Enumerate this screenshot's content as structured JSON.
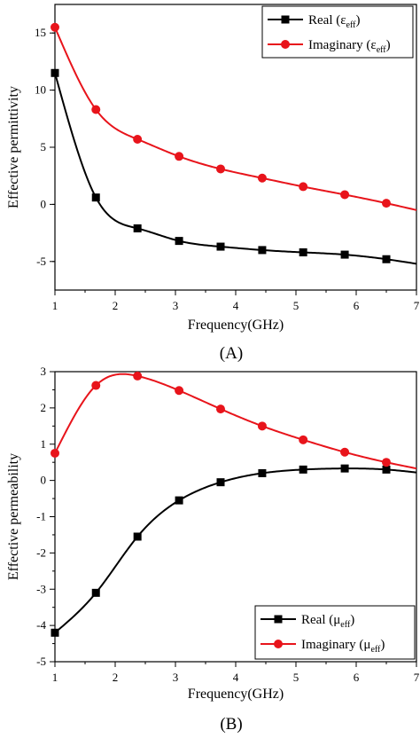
{
  "chart_data": [
    {
      "type": "line",
      "panel_label": "(A)",
      "xlabel": "Frequency(GHz)",
      "ylabel": "Effective permittivity",
      "xlim": [
        1,
        7
      ],
      "ylim": [
        -7.5,
        17.5
      ],
      "xticks": [
        1,
        2,
        3,
        4,
        5,
        6,
        7
      ],
      "yticks": [
        -5,
        0,
        5,
        10,
        15
      ],
      "grid": false,
      "legend_position": "top-right",
      "series": [
        {
          "name": "Real (εeff)",
          "name_main": "Real (ε",
          "name_sub": "eff",
          "name_end": ")",
          "color": "#000000",
          "marker": "square",
          "x": [
            1.0,
            1.68,
            2.37,
            3.06,
            3.75,
            4.44,
            5.12,
            5.81,
            6.5,
            7.0
          ],
          "y": [
            11.5,
            0.6,
            -2.1,
            -3.2,
            -3.7,
            -4.0,
            -4.2,
            -4.4,
            -4.8,
            -5.2
          ],
          "marker_x": [
            1.0,
            1.68,
            2.37,
            3.06,
            3.75,
            4.44,
            5.12,
            5.81,
            6.5
          ]
        },
        {
          "name": "Imaginary (εeff)",
          "name_main": "Imaginary (ε",
          "name_sub": "eff",
          "name_end": ")",
          "color": "#e8141b",
          "marker": "circle",
          "x": [
            1.0,
            1.68,
            2.37,
            3.06,
            3.75,
            4.44,
            5.12,
            5.81,
            6.5,
            7.0
          ],
          "y": [
            15.5,
            8.3,
            5.7,
            4.2,
            3.1,
            2.3,
            1.55,
            0.85,
            0.1,
            -0.5
          ],
          "marker_x": [
            1.0,
            1.68,
            2.37,
            3.06,
            3.75,
            4.44,
            5.12,
            5.81,
            6.5
          ]
        }
      ]
    },
    {
      "type": "line",
      "panel_label": "(B)",
      "xlabel": "Frequency(GHz)",
      "ylabel": "Effective permeability",
      "xlim": [
        1,
        7
      ],
      "ylim": [
        -5,
        3
      ],
      "xticks": [
        1,
        2,
        3,
        4,
        5,
        6,
        7
      ],
      "yticks": [
        -5,
        -4,
        -3,
        -2,
        -1,
        0,
        1,
        2,
        3
      ],
      "grid": false,
      "legend_position": "bottom-right",
      "series": [
        {
          "name": "Real (μeff)",
          "name_main": "Real (μ",
          "name_sub": "eff",
          "name_end": ")",
          "color": "#000000",
          "marker": "square",
          "x": [
            1.0,
            1.68,
            2.37,
            3.06,
            3.75,
            4.44,
            5.12,
            5.81,
            6.5,
            7.0
          ],
          "y": [
            -4.2,
            -3.1,
            -1.55,
            -0.55,
            -0.05,
            0.2,
            0.3,
            0.33,
            0.3,
            0.22
          ],
          "marker_x": [
            1.0,
            1.68,
            2.37,
            3.06,
            3.75,
            4.44,
            5.12,
            5.81,
            6.5
          ]
        },
        {
          "name": "Imaginary (μeff)",
          "name_main": "Imaginary (μ",
          "name_sub": "eff",
          "name_end": ")",
          "color": "#e8141b",
          "marker": "circle",
          "x": [
            1.0,
            1.68,
            2.37,
            3.06,
            3.75,
            4.44,
            5.12,
            5.81,
            6.5,
            7.0
          ],
          "y": [
            0.75,
            2.62,
            2.88,
            2.48,
            1.97,
            1.5,
            1.12,
            0.78,
            0.5,
            0.33
          ],
          "marker_x": [
            1.0,
            1.68,
            2.37,
            3.06,
            3.75,
            4.44,
            5.12,
            5.81,
            6.5
          ]
        }
      ]
    }
  ]
}
